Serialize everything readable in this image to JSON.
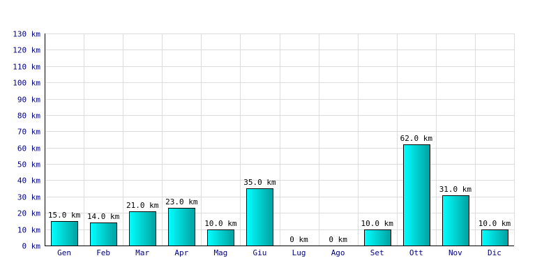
{
  "chart_data": {
    "type": "bar",
    "title": "",
    "xlabel": "",
    "ylabel": "",
    "unit": "km",
    "categories": [
      "Gen",
      "Feb",
      "Mar",
      "Apr",
      "Mag",
      "Giu",
      "Lug",
      "Ago",
      "Set",
      "Ott",
      "Nov",
      "Dic"
    ],
    "values": [
      15,
      14,
      21,
      23,
      10,
      35,
      0,
      0,
      10,
      62,
      31,
      10
    ],
    "value_labels": [
      "15.0 km",
      "14.0 km",
      "21.0 km",
      "23.0 km",
      "10.0 km",
      "35.0 km",
      "0 km",
      "0 km",
      "10.0 km",
      "62.0 km",
      "31.0 km",
      "10.0 km"
    ],
    "ylim": [
      0,
      130
    ],
    "y_ticks": [
      0,
      10,
      20,
      30,
      40,
      50,
      60,
      70,
      80,
      90,
      100,
      110,
      120,
      130
    ],
    "y_tick_labels": [
      "0 km",
      "10 km",
      "20 km",
      "30 km",
      "40 km",
      "50 km",
      "60 km",
      "70 km",
      "80 km",
      "90 km",
      "100 km",
      "110 km",
      "120 km",
      "130 km"
    ],
    "grid": true,
    "legend": "none"
  },
  "colors": {
    "bar_top": "#00ffff",
    "bar_bottom": "#009999",
    "grid": "#dcdcdc",
    "tick_text": "#000080"
  }
}
